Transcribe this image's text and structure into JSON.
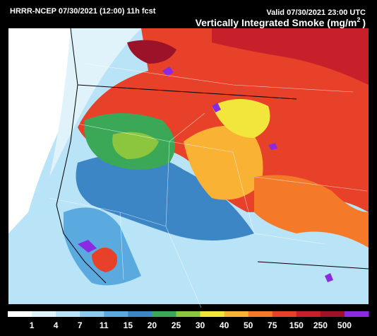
{
  "header": {
    "run": "HRRR-NCEP 07/30/2021 (12:00) 11h fcst",
    "valid": "Valid 07/30/2021 23:00 UTC",
    "title": "Vertically Integrated Smoke (mg/m",
    "title_superscript": "2",
    "title_end": ")"
  },
  "colorbar": {
    "labels": [
      "1",
      "4",
      "7",
      "11",
      "15",
      "20",
      "25",
      "30",
      "40",
      "50",
      "75",
      "150",
      "250",
      "500"
    ],
    "colors": [
      "#ffffff",
      "#e0f3fb",
      "#b9e3f6",
      "#8ccbee",
      "#5aa9df",
      "#3d86c6",
      "#3aa856",
      "#8cc63f",
      "#f2e63c",
      "#f9b233",
      "#f47a2a",
      "#e8412a",
      "#c8202a",
      "#9c1228",
      "#8a2be2"
    ]
  }
}
